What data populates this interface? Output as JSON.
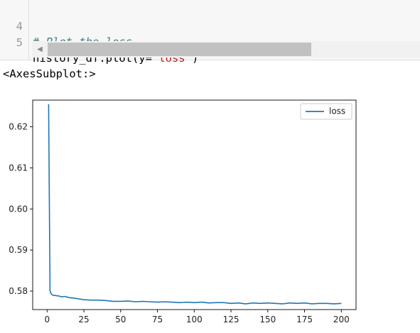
{
  "code_cell": {
    "lines": [
      {
        "number": "4",
        "comment": "# Plot the loss"
      },
      {
        "number": "5",
        "code_before": "history_df.plot(y=",
        "string": "\"loss\"",
        "code_after": ")"
      }
    ],
    "scrollbar_left_arrow": "◀"
  },
  "output": {
    "repr_text": "<AxesSubplot:>"
  },
  "chart_data": {
    "type": "line",
    "title": "",
    "xlabel": "",
    "ylabel": "",
    "xlim": [
      -9.8,
      210
    ],
    "ylim": [
      0.5755,
      0.6265
    ],
    "xticks": [
      0,
      25,
      50,
      75,
      100,
      125,
      150,
      175,
      200
    ],
    "xtick_labels": [
      "0",
      "25",
      "50",
      "75",
      "100",
      "125",
      "150",
      "175",
      "200"
    ],
    "yticks": [
      0.58,
      0.59,
      0.6,
      0.61,
      0.62
    ],
    "ytick_labels": [
      "0.58",
      "0.59",
      "0.60",
      "0.61",
      "0.62"
    ],
    "grid": false,
    "legend_position": "top-right",
    "line_color": "#1f77b4",
    "series": [
      {
        "name": "loss",
        "x": [
          1,
          2,
          3,
          4,
          6,
          8,
          10,
          12,
          15,
          18,
          20,
          25,
          30,
          35,
          40,
          45,
          50,
          55,
          60,
          65,
          70,
          75,
          80,
          85,
          90,
          95,
          100,
          105,
          110,
          115,
          120,
          125,
          130,
          135,
          140,
          145,
          150,
          155,
          160,
          165,
          170,
          175,
          180,
          185,
          190,
          195,
          200
        ],
        "y": [
          0.6255,
          0.58,
          0.5792,
          0.579,
          0.5789,
          0.5788,
          0.5786,
          0.5787,
          0.5784,
          0.5783,
          0.5782,
          0.5779,
          0.5778,
          0.5778,
          0.5777,
          0.5775,
          0.5775,
          0.5776,
          0.5774,
          0.5775,
          0.5774,
          0.5773,
          0.5774,
          0.5773,
          0.5772,
          0.5773,
          0.5772,
          0.5773,
          0.5771,
          0.5772,
          0.5772,
          0.577,
          0.5771,
          0.5769,
          0.5771,
          0.577,
          0.5771,
          0.577,
          0.5769,
          0.5771,
          0.577,
          0.5771,
          0.5769,
          0.577,
          0.577,
          0.5769,
          0.577
        ]
      }
    ]
  }
}
